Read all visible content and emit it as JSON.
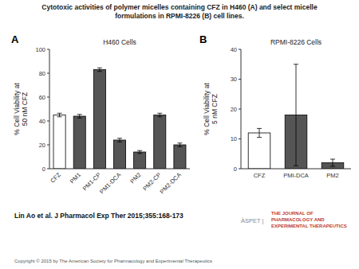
{
  "title": "Cytotoxic activities of polymer micelles containing CFZ in H460 (A) and select micelle\nformulations in RPMI-8226 (B) cell lines.",
  "annotations": [
    "Lin Ao et al. J Pharmacol Exp Ther 2015;355:168-173",
    "Copyright © 2015 by The American Society for Pharmacology and Experimental Therapeutics",
    "THE JOURNAL OF\nPHARMACOLOGY AND\nEXPERIMENTAL THERAPEUTICS",
    "ÀSPET |"
  ],
  "chart_data": [
    {
      "type": "bar",
      "title": "H460 Cells",
      "annotations": [
        "A"
      ],
      "ylabel": "% Cell Viability at\n50 nM CFZ",
      "categories": [
        "CFZ",
        "PM1",
        "PM1-CP",
        "PM1-DCA",
        "PM2",
        "PM2-CP",
        "PM2-DCA"
      ],
      "values": [
        45,
        44,
        83,
        24,
        14,
        45,
        20
      ],
      "errors": [
        1.5,
        1.5,
        1.5,
        1.5,
        1.2,
        1.5,
        1.5
      ],
      "colors": [
        "white",
        "#555555",
        "#555555",
        "#555555",
        "#555555",
        "#555555",
        "#555555"
      ],
      "ylim": [
        0,
        100
      ],
      "yticks": [
        0,
        20,
        40,
        60,
        80,
        100
      ],
      "grid": false
    },
    {
      "type": "bar",
      "title": "RPMI-8226 Cells",
      "annotations": [
        "B"
      ],
      "ylabel": "% Cell Viability at\n5 nM CFZ",
      "categories": [
        "CFZ",
        "PMI-DCA",
        "PM2"
      ],
      "values": [
        12,
        18,
        2
      ],
      "errors": [
        1.5,
        17,
        1.2
      ],
      "colors": [
        "white",
        "#555555",
        "#555555"
      ],
      "ylim": [
        0,
        40
      ],
      "yticks": [
        0,
        10,
        20,
        30,
        40
      ],
      "grid": false
    }
  ]
}
